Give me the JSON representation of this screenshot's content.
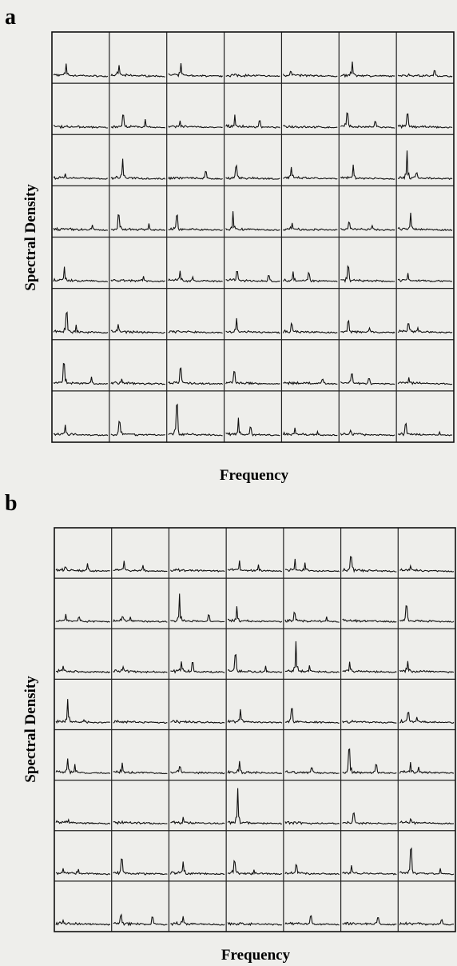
{
  "panels": [
    {
      "label": "a",
      "y_label": "Spectral Density",
      "x_label": "Frequency"
    },
    {
      "label": "b",
      "y_label": "Spectral Density",
      "x_label": "Frequency"
    }
  ]
}
